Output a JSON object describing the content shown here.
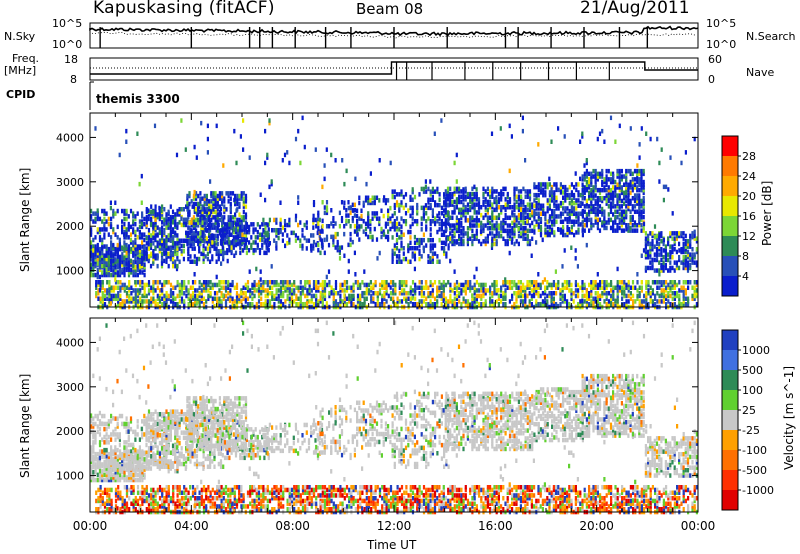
{
  "header": {
    "station": "Kapuskasing (fitACF)",
    "beam": "Beam 08",
    "date": "21/Aug/2011"
  },
  "top_panels": {
    "nsky_label": "N.Sky",
    "nsky_ticks": [
      "10^5",
      "10^0"
    ],
    "nsearch_label": "N.Search",
    "nsearch_ticks": [
      "10^5",
      "10^0"
    ],
    "freq_label_1": "Freq.",
    "freq_label_2": "[MHz]",
    "freq_ticks": [
      "18",
      "8"
    ],
    "nave_label": "Nave",
    "nave_ticks": [
      "60",
      "0"
    ],
    "cpid_label": "CPID",
    "cpid_value": "themis 3300"
  },
  "chart_data": [
    {
      "type": "heatmap",
      "panel": "power",
      "xlabel": "",
      "ylabel": "Slant Range [km]",
      "x_ticks": [
        "00:00",
        "04:00",
        "08:00",
        "12:00",
        "16:00",
        "20:00",
        "00:00"
      ],
      "y_ticks": [
        1000,
        2000,
        3000,
        4000
      ],
      "ylim": [
        180,
        4550
      ],
      "xlim_hours": [
        0,
        24
      ],
      "colorbar": {
        "label": "Power [dB]",
        "ticks": [
          "28",
          "24",
          "20",
          "16",
          "12",
          "8",
          "4"
        ],
        "colors": [
          "#ff0000",
          "#ff7a00",
          "#ffaa00",
          "#e8e800",
          "#7cd636",
          "#2e8b57",
          "#2850b8",
          "#0a1ecc"
        ]
      }
    },
    {
      "type": "heatmap",
      "panel": "velocity",
      "xlabel": "Time UT",
      "ylabel": "Slant Range [km]",
      "x_ticks": [
        "00:00",
        "04:00",
        "08:00",
        "12:00",
        "16:00",
        "20:00",
        "00:00"
      ],
      "y_ticks": [
        1000,
        2000,
        3000,
        4000
      ],
      "ylim": [
        180,
        4550
      ],
      "xlim_hours": [
        0,
        24
      ],
      "colorbar": {
        "label": "Velocity [m s^-1]",
        "ticks": [
          "1000",
          "500",
          "100",
          "25",
          "-25",
          "-100",
          "-500",
          "-1000"
        ],
        "colors": [
          "#2040c0",
          "#4070e0",
          "#2e8b57",
          "#60d030",
          "#c8c8c8",
          "#ffa000",
          "#ff7000",
          "#ff3000",
          "#e00000"
        ]
      }
    }
  ],
  "colors": {
    "ground_grey": "#c8c8c8",
    "frame": "#000000"
  }
}
